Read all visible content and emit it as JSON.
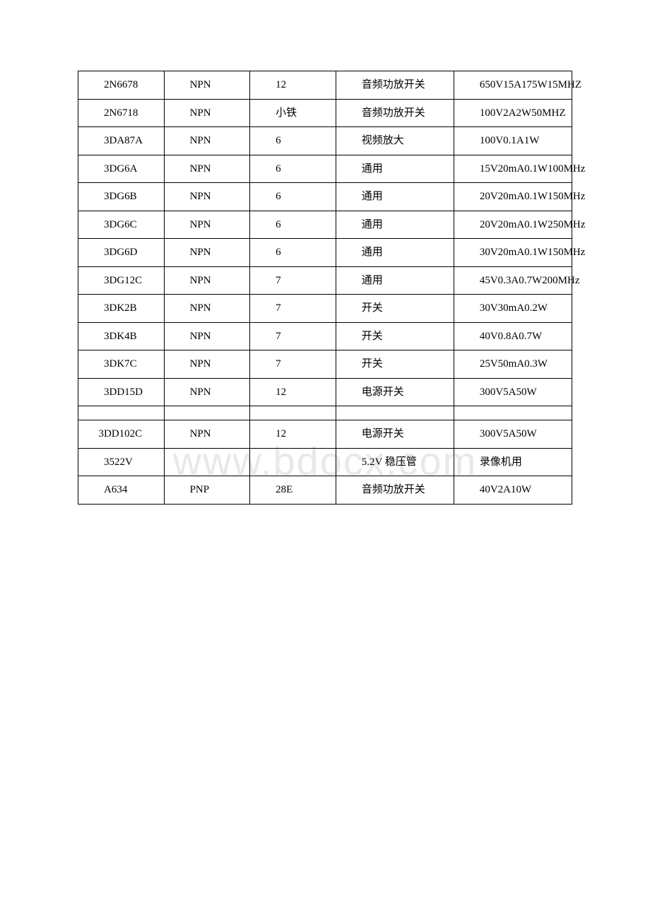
{
  "watermark": "www.bdocx.com",
  "table": {
    "columns": [
      "col1",
      "col2",
      "col3",
      "col4",
      "col5"
    ],
    "column_widths": [
      "16%",
      "16%",
      "16%",
      "22%",
      "22%"
    ],
    "border_color": "#000000",
    "background_color": "#ffffff",
    "text_color": "#000000",
    "font_size": 15,
    "rows": [
      {
        "cells": [
          "2N6678",
          "NPN",
          "12",
          "音频功放开关",
          "650V15A175W15MHZ"
        ],
        "type": "data"
      },
      {
        "cells": [
          "2N6718",
          "NPN",
          "小铁",
          "音频功放开关",
          "100V2A2W50MHZ"
        ],
        "type": "data"
      },
      {
        "cells": [
          "3DA87A",
          "NPN",
          "6",
          "视频放大",
          "100V0.1A1W"
        ],
        "type": "data"
      },
      {
        "cells": [
          "3DG6A",
          "NPN",
          "6",
          "通用",
          "15V20mA0.1W100MHz"
        ],
        "type": "data"
      },
      {
        "cells": [
          "3DG6B",
          "NPN",
          "6",
          "通用",
          "20V20mA0.1W150MHz"
        ],
        "type": "data"
      },
      {
        "cells": [
          "3DG6C",
          "NPN",
          "6",
          "通用",
          "20V20mA0.1W250MHz"
        ],
        "type": "data"
      },
      {
        "cells": [
          "3DG6D",
          "NPN",
          "6",
          "通用",
          "30V20mA0.1W150MHz"
        ],
        "type": "data"
      },
      {
        "cells": [
          "3DG12C",
          "NPN",
          "7",
          "通用",
          "45V0.3A0.7W200MHz"
        ],
        "type": "data"
      },
      {
        "cells": [
          "3DK2B",
          "NPN",
          "7",
          "开关",
          "30V30mA0.2W"
        ],
        "type": "data"
      },
      {
        "cells": [
          "3DK4B",
          "NPN",
          "7",
          "开关",
          "40V0.8A0.7W"
        ],
        "type": "data"
      },
      {
        "cells": [
          "3DK7C",
          "NPN",
          "7",
          "开关",
          "25V50mA0.3W"
        ],
        "type": "data"
      },
      {
        "cells": [
          "3DD15D",
          "NPN",
          "12",
          "电源开关",
          "300V5A50W"
        ],
        "type": "data"
      },
      {
        "cells": [
          "",
          "",
          "",
          "",
          ""
        ],
        "type": "spacer"
      },
      {
        "cells": [
          "3DD102C",
          "NPN",
          "12",
          "电源开关",
          "300V5A50W"
        ],
        "type": "data"
      },
      {
        "cells": [
          "3522V",
          "",
          "",
          "5.2V 稳压管",
          "录像机用"
        ],
        "type": "data"
      },
      {
        "cells": [
          "A634",
          "PNP",
          "28E",
          "音频功放开关",
          "40V2A10W"
        ],
        "type": "data"
      }
    ]
  }
}
